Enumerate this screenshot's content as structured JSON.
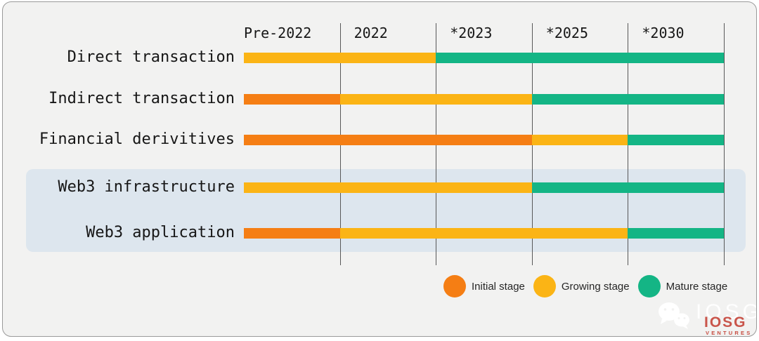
{
  "chart_data": {
    "type": "bar",
    "subtype": "stage-timeline-gantt",
    "title": "",
    "categories": [
      "Pre-2022",
      "2022",
      "*2023",
      "*2025",
      "*2030"
    ],
    "series": [
      {
        "name": "Direct transaction",
        "stages": [
          "growing",
          "growing",
          "mature",
          "mature",
          "mature"
        ],
        "highlighted": false
      },
      {
        "name": "Indirect transaction",
        "stages": [
          "initial",
          "growing",
          "growing",
          "mature",
          "mature"
        ],
        "highlighted": false
      },
      {
        "name": "Financial derivitives",
        "stages": [
          "initial",
          "initial",
          "initial",
          "growing",
          "mature"
        ],
        "highlighted": false
      },
      {
        "name": "Web3 infrastructure",
        "stages": [
          "growing",
          "growing",
          "growing",
          "mature",
          "mature"
        ],
        "highlighted": true
      },
      {
        "name": "Web3 application",
        "stages": [
          "initial",
          "growing",
          "growing",
          "growing",
          "mature"
        ],
        "highlighted": true
      }
    ],
    "stage_colors": {
      "initial": "#F57E14",
      "growing": "#FBB415",
      "mature": "#14B585"
    },
    "legend": [
      {
        "label": "Initial stage",
        "stage": "initial"
      },
      {
        "label": "Growing stage",
        "stage": "growing"
      },
      {
        "label": "Mature stage",
        "stage": "mature"
      }
    ],
    "legend_position": "bottom-right",
    "grid": true,
    "highlight_box_color": "#DDE6EE"
  },
  "watermark": {
    "wechat_icon": "wechat-icon",
    "brand_shadow": "IOSG",
    "brand": "IOSG",
    "division": "VENTURES",
    "brand_color": "#C23A2E"
  },
  "colors": {
    "background": "#F2F2F1",
    "gridline": "#585858",
    "text": "#161616"
  }
}
